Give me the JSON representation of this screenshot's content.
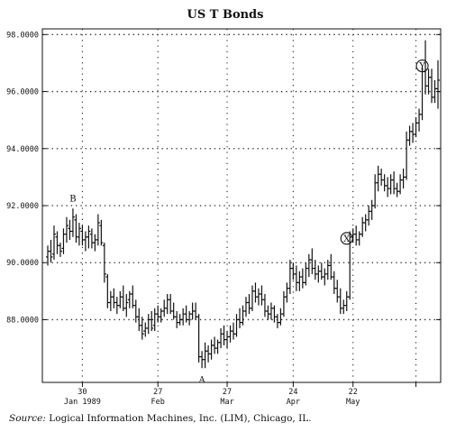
{
  "chart_data": {
    "type": "ohlc_bar",
    "title": "US T Bonds",
    "ylim": [
      85.8,
      98.2
    ],
    "yticks": [
      88.0,
      90.0,
      92.0,
      94.0,
      96.0,
      98.0
    ],
    "ytick_labels": [
      "88.0000",
      "90.0000",
      "92.0000",
      "94.0000",
      "96.0000",
      "98.0000"
    ],
    "x_tick_labels": [
      {
        "day": "30",
        "month": "Jan 1989"
      },
      {
        "day": "27",
        "month": "Feb"
      },
      {
        "day": "27",
        "month": "Mar"
      },
      {
        "day": "24",
        "month": "Apr"
      },
      {
        "day": "22",
        "month": "May"
      },
      {
        "day": "",
        "month": ""
      }
    ],
    "x_tick_bars": [
      11,
      35,
      57,
      78,
      97,
      117
    ],
    "bars": [
      [
        90.2,
        90.6,
        89.9,
        90.4
      ],
      [
        90.4,
        90.8,
        90.0,
        90.2
      ],
      [
        90.3,
        91.3,
        90.1,
        91.0
      ],
      [
        90.9,
        91.1,
        90.3,
        90.6
      ],
      [
        90.6,
        90.7,
        90.2,
        90.4
      ],
      [
        90.5,
        91.2,
        90.3,
        91.0
      ],
      [
        91.0,
        91.6,
        90.7,
        91.3
      ],
      [
        91.2,
        91.5,
        90.8,
        91.1
      ],
      [
        91.1,
        91.9,
        90.9,
        91.6
      ],
      [
        91.5,
        91.7,
        90.7,
        90.9
      ],
      [
        90.9,
        91.4,
        90.6,
        91.2
      ],
      [
        91.1,
        91.3,
        90.6,
        90.8
      ],
      [
        90.8,
        91.1,
        90.4,
        90.9
      ],
      [
        90.9,
        91.3,
        90.5,
        91.1
      ],
      [
        91.0,
        91.2,
        90.5,
        90.7
      ],
      [
        90.7,
        91.0,
        90.4,
        90.8
      ],
      [
        90.8,
        91.7,
        90.6,
        91.4
      ],
      [
        91.3,
        91.5,
        90.6,
        90.7
      ],
      [
        90.6,
        90.7,
        89.3,
        89.6
      ],
      [
        89.5,
        89.6,
        88.4,
        88.6
      ],
      [
        88.6,
        89.0,
        88.3,
        88.8
      ],
      [
        88.8,
        89.1,
        88.4,
        88.6
      ],
      [
        88.6,
        88.8,
        88.2,
        88.5
      ],
      [
        88.5,
        89.0,
        88.4,
        88.8
      ],
      [
        88.8,
        89.2,
        88.3,
        88.4
      ],
      [
        88.4,
        88.9,
        88.1,
        88.6
      ],
      [
        88.7,
        89.0,
        88.4,
        88.9
      ],
      [
        88.9,
        89.2,
        88.4,
        88.5
      ],
      [
        88.5,
        88.7,
        87.9,
        88.1
      ],
      [
        88.1,
        88.4,
        87.6,
        87.8
      ],
      [
        87.8,
        88.1,
        87.3,
        87.5
      ],
      [
        87.6,
        87.9,
        87.4,
        87.7
      ],
      [
        87.7,
        88.2,
        87.5,
        88.0
      ],
      [
        88.0,
        88.3,
        87.6,
        87.7
      ],
      [
        87.8,
        88.4,
        87.6,
        88.2
      ],
      [
        88.2,
        88.5,
        87.9,
        88.1
      ],
      [
        88.1,
        88.4,
        87.9,
        88.3
      ],
      [
        88.3,
        88.7,
        88.1,
        88.4
      ],
      [
        88.4,
        88.9,
        88.2,
        88.7
      ],
      [
        88.7,
        88.9,
        88.2,
        88.3
      ],
      [
        88.3,
        88.6,
        88.0,
        88.1
      ],
      [
        88.1,
        88.3,
        87.7,
        87.9
      ],
      [
        87.9,
        88.2,
        87.8,
        88.0
      ],
      [
        88.0,
        88.4,
        87.8,
        88.2
      ],
      [
        88.2,
        88.5,
        87.9,
        88.0
      ],
      [
        88.0,
        88.3,
        87.8,
        88.2
      ],
      [
        88.2,
        88.6,
        88.0,
        88.3
      ],
      [
        88.3,
        88.6,
        88.0,
        88.1
      ],
      [
        88.1,
        88.2,
        86.5,
        86.7
      ],
      [
        86.7,
        86.9,
        86.3,
        86.6
      ],
      [
        86.6,
        87.2,
        86.3,
        86.9
      ],
      [
        86.9,
        87.1,
        86.5,
        86.8
      ],
      [
        86.8,
        87.3,
        86.6,
        87.1
      ],
      [
        87.1,
        87.4,
        86.8,
        87.0
      ],
      [
        87.0,
        87.3,
        86.8,
        87.2
      ],
      [
        87.2,
        87.7,
        87.0,
        87.5
      ],
      [
        87.5,
        87.8,
        87.1,
        87.3
      ],
      [
        87.3,
        87.6,
        87.0,
        87.4
      ],
      [
        87.4,
        87.8,
        87.2,
        87.6
      ],
      [
        87.6,
        87.9,
        87.3,
        87.5
      ],
      [
        87.5,
        88.2,
        87.4,
        88.0
      ],
      [
        88.0,
        88.4,
        87.7,
        87.9
      ],
      [
        87.9,
        88.5,
        87.8,
        88.3
      ],
      [
        88.3,
        88.8,
        88.1,
        88.6
      ],
      [
        88.6,
        88.9,
        88.2,
        88.4
      ],
      [
        88.4,
        89.2,
        88.3,
        89.0
      ],
      [
        89.0,
        89.3,
        88.6,
        88.8
      ],
      [
        88.8,
        89.1,
        88.5,
        88.9
      ],
      [
        88.9,
        89.2,
        88.5,
        88.7
      ],
      [
        88.7,
        88.9,
        88.1,
        88.3
      ],
      [
        88.3,
        88.5,
        88.0,
        88.2
      ],
      [
        88.2,
        88.6,
        88.0,
        88.4
      ],
      [
        88.4,
        88.5,
        87.9,
        88.1
      ],
      [
        88.1,
        88.2,
        87.7,
        87.9
      ],
      [
        87.9,
        88.4,
        87.8,
        88.2
      ],
      [
        88.2,
        89.0,
        88.1,
        88.8
      ],
      [
        88.8,
        89.3,
        88.6,
        89.1
      ],
      [
        89.1,
        90.1,
        88.9,
        89.8
      ],
      [
        89.8,
        90.0,
        89.4,
        89.6
      ],
      [
        89.6,
        89.9,
        89.0,
        89.3
      ],
      [
        89.3,
        89.7,
        89.0,
        89.5
      ],
      [
        89.5,
        89.8,
        89.1,
        89.3
      ],
      [
        89.3,
        90.0,
        89.2,
        89.8
      ],
      [
        89.8,
        90.3,
        89.5,
        90.1
      ],
      [
        90.1,
        90.5,
        89.6,
        89.8
      ],
      [
        89.8,
        90.1,
        89.4,
        89.6
      ],
      [
        89.6,
        89.9,
        89.3,
        89.7
      ],
      [
        89.7,
        90.0,
        89.4,
        89.5
      ],
      [
        89.5,
        89.8,
        89.2,
        89.6
      ],
      [
        89.6,
        90.1,
        89.4,
        89.9
      ],
      [
        89.9,
        90.3,
        89.4,
        89.5
      ],
      [
        89.5,
        89.7,
        88.9,
        89.1
      ],
      [
        89.1,
        89.4,
        88.6,
        88.8
      ],
      [
        88.8,
        89.1,
        88.2,
        88.4
      ],
      [
        88.4,
        88.7,
        88.2,
        88.5
      ],
      [
        88.5,
        89.0,
        88.3,
        88.8
      ],
      [
        88.8,
        91.1,
        88.7,
        90.9
      ],
      [
        90.9,
        91.2,
        90.7,
        91.0
      ],
      [
        91.0,
        91.3,
        90.6,
        90.8
      ],
      [
        90.8,
        91.1,
        90.6,
        91.0
      ],
      [
        91.0,
        91.6,
        90.9,
        91.4
      ],
      [
        91.4,
        91.7,
        91.1,
        91.5
      ],
      [
        91.5,
        92.0,
        91.3,
        91.8
      ],
      [
        91.8,
        92.2,
        91.5,
        92.0
      ],
      [
        92.0,
        93.1,
        91.9,
        92.8
      ],
      [
        92.8,
        93.4,
        92.5,
        93.1
      ],
      [
        93.1,
        93.3,
        92.7,
        92.9
      ],
      [
        92.9,
        93.1,
        92.5,
        92.7
      ],
      [
        92.7,
        93.0,
        92.3,
        92.6
      ],
      [
        92.6,
        93.1,
        92.4,
        92.9
      ],
      [
        92.9,
        93.2,
        92.4,
        92.6
      ],
      [
        92.6,
        92.8,
        92.3,
        92.5
      ],
      [
        92.5,
        93.1,
        92.4,
        92.9
      ],
      [
        92.9,
        93.3,
        92.6,
        93.0
      ],
      [
        93.0,
        94.6,
        92.9,
        94.3
      ],
      [
        94.3,
        94.8,
        94.1,
        94.6
      ],
      [
        94.6,
        94.9,
        94.2,
        94.5
      ],
      [
        94.5,
        95.1,
        94.4,
        94.9
      ],
      [
        94.9,
        95.4,
        94.6,
        95.2
      ],
      [
        95.2,
        96.9,
        95.0,
        96.7
      ],
      [
        96.7,
        97.8,
        95.9,
        96.2
      ],
      [
        96.2,
        96.8,
        95.9,
        96.5
      ],
      [
        96.5,
        96.8,
        95.6,
        95.8
      ],
      [
        95.8,
        96.4,
        95.6,
        96.1
      ],
      [
        96.1,
        97.1,
        95.4,
        96.4
      ]
    ],
    "annotations": [
      {
        "label": "B",
        "x_bar": 8,
        "y": 92.25,
        "circled": false
      },
      {
        "label": "A",
        "x_bar": 49,
        "y": 85.9,
        "circled": false
      },
      {
        "label": "X",
        "x_bar": 95,
        "y": 90.85,
        "circled": true
      },
      {
        "label": "Y",
        "x_bar": 119,
        "y": 96.9,
        "circled": true
      }
    ],
    "grid": true,
    "source": {
      "prefix": "Source:",
      "text": " Logical Information Machines, Inc. (LIM), Chicago, IL."
    }
  }
}
